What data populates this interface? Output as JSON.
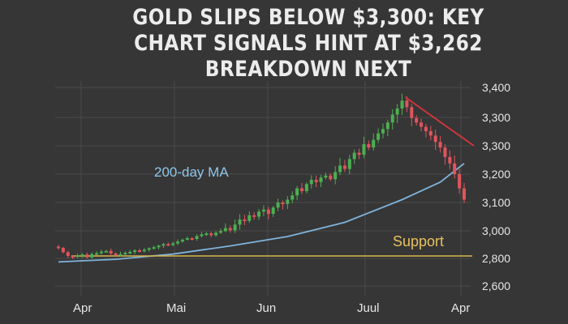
{
  "headline": {
    "line1": "GOLD SLIPS BELOW $3,300: KEY",
    "line2": "CHART SIGNALS HINT AT $3,262",
    "line3": "BREAKDOWN NEXT"
  },
  "colors": {
    "background": "#363636",
    "up_candle": "#4caf50",
    "down_candle": "#e2545c",
    "moving_average": "#7fb3dc",
    "support_line": "#d9b54a",
    "trend_line": "#d9343c",
    "grid": "#4a4a4a"
  },
  "chart_data": {
    "type": "candlestick",
    "y_tick_labels": [
      "3,400",
      "3,300",
      "3,300",
      "3,200",
      "3,100",
      "3,000",
      "2,800",
      "2,600"
    ],
    "x_tick_labels": [
      "Apr",
      "Mai",
      "Jun",
      "Juul",
      "Apr"
    ],
    "grid": true,
    "annotations": {
      "moving_average_label": "200-day MA",
      "support_label": "Support"
    },
    "support_level": 2800,
    "close_series": [
      2865,
      2830,
      2800,
      2798,
      2805,
      2812,
      2790,
      2815,
      2822,
      2835,
      2840,
      2820,
      2805,
      2815,
      2825,
      2832,
      2845,
      2838,
      2850,
      2862,
      2870,
      2882,
      2895,
      2888,
      2900,
      2915,
      2930,
      2942,
      2935,
      2958,
      2972,
      2980,
      2965,
      2985,
      2998,
      3010,
      3002,
      3022,
      3040,
      3035,
      3055,
      3050,
      3068,
      3075,
      3060,
      3082,
      3100,
      3095,
      3110,
      3125,
      3150,
      3140,
      3165,
      3180,
      3172,
      3188,
      3195,
      3182,
      3205,
      3220,
      3212,
      3235,
      3250,
      3245,
      3270,
      3262,
      3280,
      3295,
      3305,
      3320,
      3338,
      3352,
      3370,
      3355,
      3330,
      3320,
      3310,
      3300,
      3290,
      3275,
      3262,
      3240,
      3225,
      3200,
      3150,
      3110
    ],
    "moving_average": {
      "name": "200-day MA",
      "points": [
        {
          "i": 0,
          "v": 2760
        },
        {
          "i": 12,
          "v": 2778
        },
        {
          "i": 24,
          "v": 2815
        },
        {
          "i": 36,
          "v": 2880
        },
        {
          "i": 48,
          "v": 2955
        },
        {
          "i": 60,
          "v": 3030
        },
        {
          "i": 72,
          "v": 3110
        },
        {
          "i": 80,
          "v": 3172
        },
        {
          "i": 85,
          "v": 3225
        }
      ]
    },
    "trend_line": {
      "from": {
        "i": 72,
        "v": 3375
      },
      "to": {
        "i": 86,
        "v": 3300
      }
    }
  }
}
